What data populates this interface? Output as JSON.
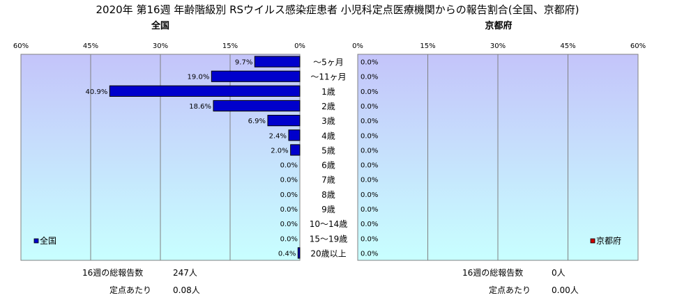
{
  "title": "2020年 第16週 年齢階級別 RSウイルス感染症患者 小児科定点医療機関からの報告割合(全国、京都府)",
  "colors": {
    "zenkoku_bar": "#0000CC",
    "kyoto_bar": "#CC0000"
  },
  "chart_data": [
    {
      "type": "bar",
      "orientation": "horizontal",
      "direction": "right-to-left",
      "subtitle": "全国",
      "xlim": [
        0,
        60
      ],
      "xticks": [
        "0%",
        "15%",
        "30%",
        "45%",
        "60%"
      ],
      "grid": true,
      "legend": "bottom-left",
      "categories": [
        "～5ヶ月",
        "～11ヶ月",
        "1歳",
        "2歳",
        "3歳",
        "4歳",
        "5歳",
        "6歳",
        "7歳",
        "8歳",
        "9歳",
        "10～14歳",
        "15～19歳",
        "20歳以上"
      ],
      "series": [
        {
          "name": "全国",
          "values": [
            9.7,
            19.0,
            40.9,
            18.6,
            6.9,
            2.4,
            2.0,
            0.0,
            0.0,
            0.0,
            0.0,
            0.0,
            0.0,
            0.4
          ],
          "labels": [
            "9.7%",
            "19.0%",
            "40.9%",
            "18.6%",
            "6.9%",
            "2.4%",
            "2.0%",
            "0.0%",
            "0.0%",
            "0.0%",
            "0.0%",
            "0.0%",
            "0.0%",
            "0.4%"
          ]
        }
      ]
    },
    {
      "type": "bar",
      "orientation": "horizontal",
      "direction": "left-to-right",
      "subtitle": "京都府",
      "xlim": [
        0,
        60
      ],
      "xticks": [
        "0%",
        "15%",
        "30%",
        "45%",
        "60%"
      ],
      "grid": true,
      "legend": "bottom-right",
      "categories": [
        "～5ヶ月",
        "～11ヶ月",
        "1歳",
        "2歳",
        "3歳",
        "4歳",
        "5歳",
        "6歳",
        "7歳",
        "8歳",
        "9歳",
        "10～14歳",
        "15～19歳",
        "20歳以上"
      ],
      "series": [
        {
          "name": "京都府",
          "values": [
            0.0,
            0.0,
            0.0,
            0.0,
            0.0,
            0.0,
            0.0,
            0.0,
            0.0,
            0.0,
            0.0,
            0.0,
            0.0,
            0.0
          ],
          "labels": [
            "0.0%",
            "0.0%",
            "0.0%",
            "0.0%",
            "0.0%",
            "0.0%",
            "0.0%",
            "0.0%",
            "0.0%",
            "0.0%",
            "0.0%",
            "0.0%",
            "0.0%",
            "0.0%"
          ]
        }
      ]
    }
  ],
  "summary": {
    "zenkoku": {
      "total_label": "16週の総報告数",
      "total_value": "247人",
      "per_label": "定点あたり",
      "per_value": "0.08人"
    },
    "kyoto": {
      "total_label": "16週の総報告数",
      "total_value": "0人",
      "per_label": "定点あたり",
      "per_value": "0.00人"
    }
  }
}
